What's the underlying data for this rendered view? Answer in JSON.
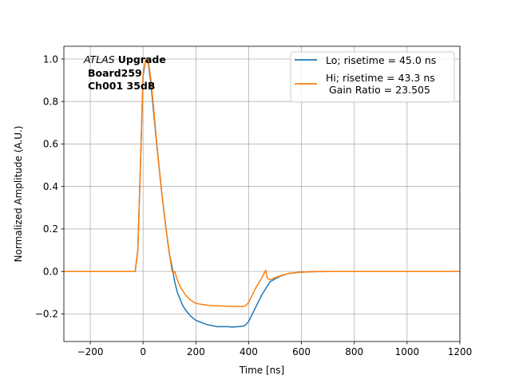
{
  "chart_data": {
    "type": "line",
    "xlabel": "Time [ns]",
    "ylabel": "Normalized Amplitude (A.U.)",
    "xlim": [
      -300,
      1200
    ],
    "ylim": [
      -0.33,
      1.06
    ],
    "xticks": [
      -200,
      0,
      200,
      400,
      600,
      800,
      1000,
      1200
    ],
    "xtick_labels": [
      "−200",
      "0",
      "200",
      "400",
      "600",
      "800",
      "1000",
      "1200"
    ],
    "yticks": [
      -0.2,
      0.0,
      0.2,
      0.4,
      0.6,
      0.8,
      1.0
    ],
    "ytick_labels": [
      "−0.2",
      "0.0",
      "0.2",
      "0.4",
      "0.6",
      "0.8",
      "1.0"
    ],
    "grid": true,
    "legend_position": "top-right",
    "annotation": {
      "atlas": "ATLAS",
      "upgrade": "Upgrade",
      "board": "Board259",
      "channel": "Ch001 35dB"
    },
    "series": [
      {
        "name": "Lo; risetime = 45.0 ns",
        "color": "#1f77b4",
        "x": [
          -300,
          -30,
          -20,
          -10,
          0,
          10,
          20,
          30,
          40,
          50,
          60,
          70,
          80,
          90,
          100,
          110,
          120,
          130,
          140,
          150,
          160,
          180,
          200,
          220,
          240,
          260,
          280,
          300,
          320,
          340,
          360,
          380,
          390,
          400,
          410,
          420,
          430,
          440,
          450,
          460,
          470,
          480,
          500,
          520,
          550,
          600,
          650,
          700,
          800,
          900,
          1000,
          1100,
          1200
        ],
        "y": [
          0.0,
          0.0,
          0.1,
          0.5,
          0.92,
          1.0,
          0.98,
          0.88,
          0.75,
          0.62,
          0.5,
          0.38,
          0.27,
          0.17,
          0.08,
          0.02,
          -0.05,
          -0.1,
          -0.13,
          -0.16,
          -0.18,
          -0.21,
          -0.23,
          -0.24,
          -0.25,
          -0.255,
          -0.26,
          -0.26,
          -0.26,
          -0.262,
          -0.26,
          -0.258,
          -0.25,
          -0.235,
          -0.21,
          -0.185,
          -0.16,
          -0.135,
          -0.11,
          -0.09,
          -0.07,
          -0.05,
          -0.035,
          -0.022,
          -0.01,
          -0.003,
          -0.001,
          0.0,
          0.0,
          0.0,
          0.0,
          0.0,
          0.0
        ]
      },
      {
        "name": "Hi; risetime = 43.3 ns\n Gain Ratio = 23.505",
        "color": "#ff7f0e",
        "x": [
          -300,
          -30,
          -20,
          -10,
          0,
          10,
          20,
          30,
          40,
          50,
          60,
          70,
          80,
          90,
          100,
          105,
          110,
          115,
          120,
          130,
          140,
          160,
          180,
          200,
          220,
          250,
          300,
          350,
          380,
          390,
          400,
          410,
          420,
          430,
          440,
          450,
          460,
          465,
          470,
          480,
          500,
          520,
          550,
          600,
          650,
          700,
          800,
          900,
          1000,
          1100,
          1200
        ],
        "y": [
          0.0,
          0.0,
          0.1,
          0.5,
          0.93,
          1.0,
          0.99,
          0.9,
          0.77,
          0.63,
          0.5,
          0.38,
          0.27,
          0.17,
          0.08,
          0.04,
          0.0,
          -0.01,
          0.0,
          -0.04,
          -0.07,
          -0.11,
          -0.135,
          -0.15,
          -0.155,
          -0.16,
          -0.163,
          -0.165,
          -0.165,
          -0.16,
          -0.145,
          -0.12,
          -0.095,
          -0.07,
          -0.05,
          -0.03,
          -0.005,
          0.005,
          -0.03,
          -0.04,
          -0.03,
          -0.02,
          -0.01,
          -0.003,
          -0.001,
          0.0,
          0.0,
          0.0,
          0.0,
          0.0,
          0.0
        ]
      }
    ]
  }
}
